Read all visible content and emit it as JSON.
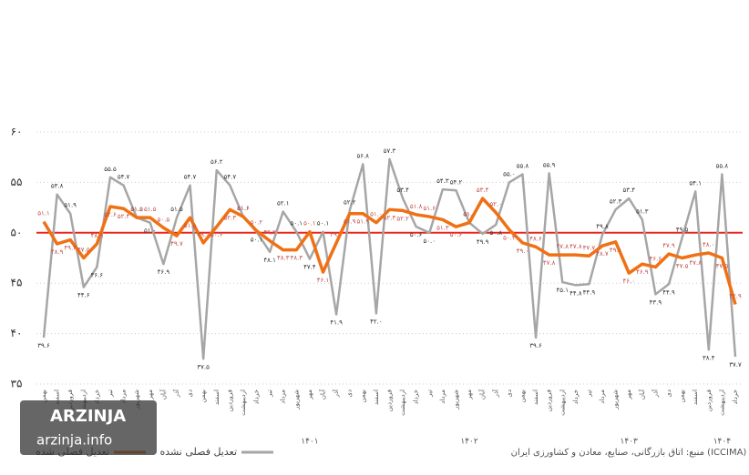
{
  "chart_data": {
    "type": "line",
    "categories": [
      "بهمن",
      "اسفند",
      "فروردین",
      "اردیبهشت",
      "خرداد",
      "تیر",
      "مرداد",
      "شهریور",
      "مهر",
      "آبان",
      "آذر",
      "دی",
      "بهمن",
      "اسفند",
      "فروردین",
      "اردیبهشت",
      "خرداد",
      "تیر",
      "مرداد",
      "شهریور",
      "مهر",
      "آبان",
      "آذر",
      "دی",
      "بهمن",
      "اسفند",
      "فروردین",
      "اردیبهشت",
      "خرداد",
      "تیر",
      "مرداد",
      "شهریور",
      "مهر",
      "آبان",
      "آذر",
      "دی",
      "بهمن",
      "اسفند",
      "فروردین",
      "اردیبهشت",
      "خرداد",
      "تیر",
      "مرداد",
      "شهریور",
      "مهر",
      "آبان",
      "آذر",
      "دی",
      "بهمن",
      "اسفند",
      "فروردین",
      "اردیبهشت",
      "خرداد"
    ],
    "years": [
      null,
      null,
      null,
      null,
      null,
      null,
      null,
      null,
      null,
      null,
      null,
      null,
      null,
      null,
      null,
      null,
      null,
      null,
      null,
      null,
      "۱۴۰۱",
      null,
      null,
      null,
      null,
      null,
      null,
      null,
      null,
      null,
      null,
      null,
      "۱۴۰۲",
      null,
      null,
      null,
      null,
      null,
      null,
      null,
      null,
      null,
      null,
      null,
      "۱۴۰۳",
      null,
      null,
      null,
      null,
      null,
      null,
      "۱۴۰۴",
      null
    ],
    "series": [
      {
        "name": "تعدیل فصلی نشده",
        "color": "#a6a6a6",
        "values": [
          39.6,
          53.8,
          51.9,
          44.6,
          46.6,
          55.5,
          54.7,
          51.5,
          51.0,
          46.9,
          51.5,
          54.7,
          37.5,
          56.2,
          54.7,
          51.6,
          50.1,
          48.1,
          52.1,
          50.1,
          47.4,
          50.1,
          41.9,
          52.2,
          56.8,
          42.0,
          57.3,
          53.4,
          50.6,
          50.0,
          54.3,
          54.2,
          51.0,
          49.9,
          50.8,
          55.0,
          55.8,
          39.6,
          55.9,
          45.1,
          44.8,
          44.9,
          49.8,
          52.3,
          53.4,
          51.3,
          43.9,
          44.9,
          49.5,
          54.1,
          38.4,
          55.8,
          37.7
        ],
        "value_labels": [
          "۳۹.۶",
          "۵۳.۸",
          "۵۱.۹",
          "۴۴.۶",
          "۴۶.۶",
          "۵۵.۵",
          "۵۴.۷",
          "۵۱.۵",
          "۵۱.۰",
          "۴۶.۹",
          "۵۱.۵",
          "۵۴.۷",
          "۳۷.۵",
          "۵۶.۲",
          "۵۴.۷",
          "۵۱.۶",
          "۵۰.۱",
          "۴۸.۱",
          "۵۲.۱",
          "۵۰.۱",
          "۴۷.۴",
          "۵۰.۱",
          "۴۱.۹",
          "۵۲.۲",
          "۵۶.۸",
          "۴۲.۰",
          "۵۷.۳",
          "۵۳.۴",
          "۵۰.۶",
          "۵۰.۰",
          "۵۴.۳",
          "۵۴.۲",
          "۵۱.۰",
          "۴۹.۹",
          "۵۰.۸",
          "۵۵.۰",
          "۵۵.۸",
          "۳۹.۶",
          "۵۵.۹",
          "۴۵.۱",
          "۴۴.۸",
          "۴۴.۹",
          "۴۹.۸",
          "۵۲.۳",
          "۵۳.۴",
          "۵۱.۳",
          "۴۳.۹",
          "۴۴.۹",
          "۴۹.۵",
          "۵۴.۱",
          "۳۸.۴",
          "۵۵.۸",
          "۳۷.۷"
        ]
      },
      {
        "name": "تعدیل فصلی شده",
        "color": "#f07014",
        "values": [
          51.1,
          48.9,
          49.3,
          47.5,
          48.9,
          52.6,
          52.4,
          51.5,
          51.5,
          50.5,
          49.7,
          51.5,
          49.0,
          50.6,
          52.3,
          51.6,
          50.2,
          49.2,
          48.3,
          48.3,
          50.1,
          46.1,
          49.0,
          51.9,
          51.9,
          51.0,
          52.3,
          52.2,
          51.8,
          51.6,
          51.3,
          50.6,
          51.0,
          53.4,
          52.0,
          50.3,
          49.0,
          48.6,
          47.8,
          47.8,
          47.8,
          47.7,
          48.7,
          49.1,
          46.0,
          46.9,
          46.6,
          47.9,
          47.5,
          47.8,
          48.0,
          47.5,
          42.9
        ],
        "value_labels": [
          "۵۱.۱",
          "۴۸.۹",
          "۴۹.۳",
          "۴۷.۵",
          "۴۸.۹",
          "۵۲.۶",
          "۵۲.۴",
          "۵۱.۵",
          "۵۱.۵",
          "۵۰.۵",
          "۴۹.۷",
          "۵۱.۵",
          "۴۹.۰",
          "۵۰.۶",
          "۵۲.۳",
          "۵۱.۶",
          "۵۰.۲",
          "۴۹.۲",
          "۴۸.۳",
          "۴۸.۳",
          "۵۰.۱",
          "۴۶.۱",
          "۴۹.۰",
          "۵۱.۹",
          "۵۱.۹",
          "۵۱.۰",
          "۵۲.۳",
          "۵۲.۲",
          "۵۱.۸",
          "۵۱.۶",
          "۵۱.۳",
          "۵۰.۶",
          "۵۱.۰",
          "۵۳.۴",
          "۵۲.۰",
          "۵۰.۳",
          "۴۹.۰",
          "۴۸.۶",
          "۴۷.۸",
          "۴۷.۸",
          "۴۷.۸",
          "۴۷.۷",
          "۴۸.۷",
          "۴۹.۱",
          "۴۶.۰",
          "۴۶.۹",
          "۴۶.۶",
          "۴۷.۹",
          "۴۷.۵",
          "۴۷.۸",
          "۴۸.۰",
          "۴۷.۵",
          "۴۲.۹"
        ]
      }
    ],
    "reference_line": {
      "value": 50,
      "color": "#e8281e"
    },
    "ylim": [
      35,
      60
    ],
    "yticks": [
      {
        "value": 35,
        "label": "۳۵"
      },
      {
        "value": 40,
        "label": "۴۰"
      },
      {
        "value": 45,
        "label": "۴۵"
      },
      {
        "value": 50,
        "label": "۵۰"
      },
      {
        "value": 55,
        "label": "۵۵"
      },
      {
        "value": 60,
        "label": "۶۰"
      }
    ],
    "grid": true,
    "source": "منبع: اتاق بازرگانی، صنایع، معادن و کشاورزی ایران (ICCIMA)",
    "watermark": {
      "brand": "ARZINJA",
      "site": "arzinja.info"
    }
  }
}
